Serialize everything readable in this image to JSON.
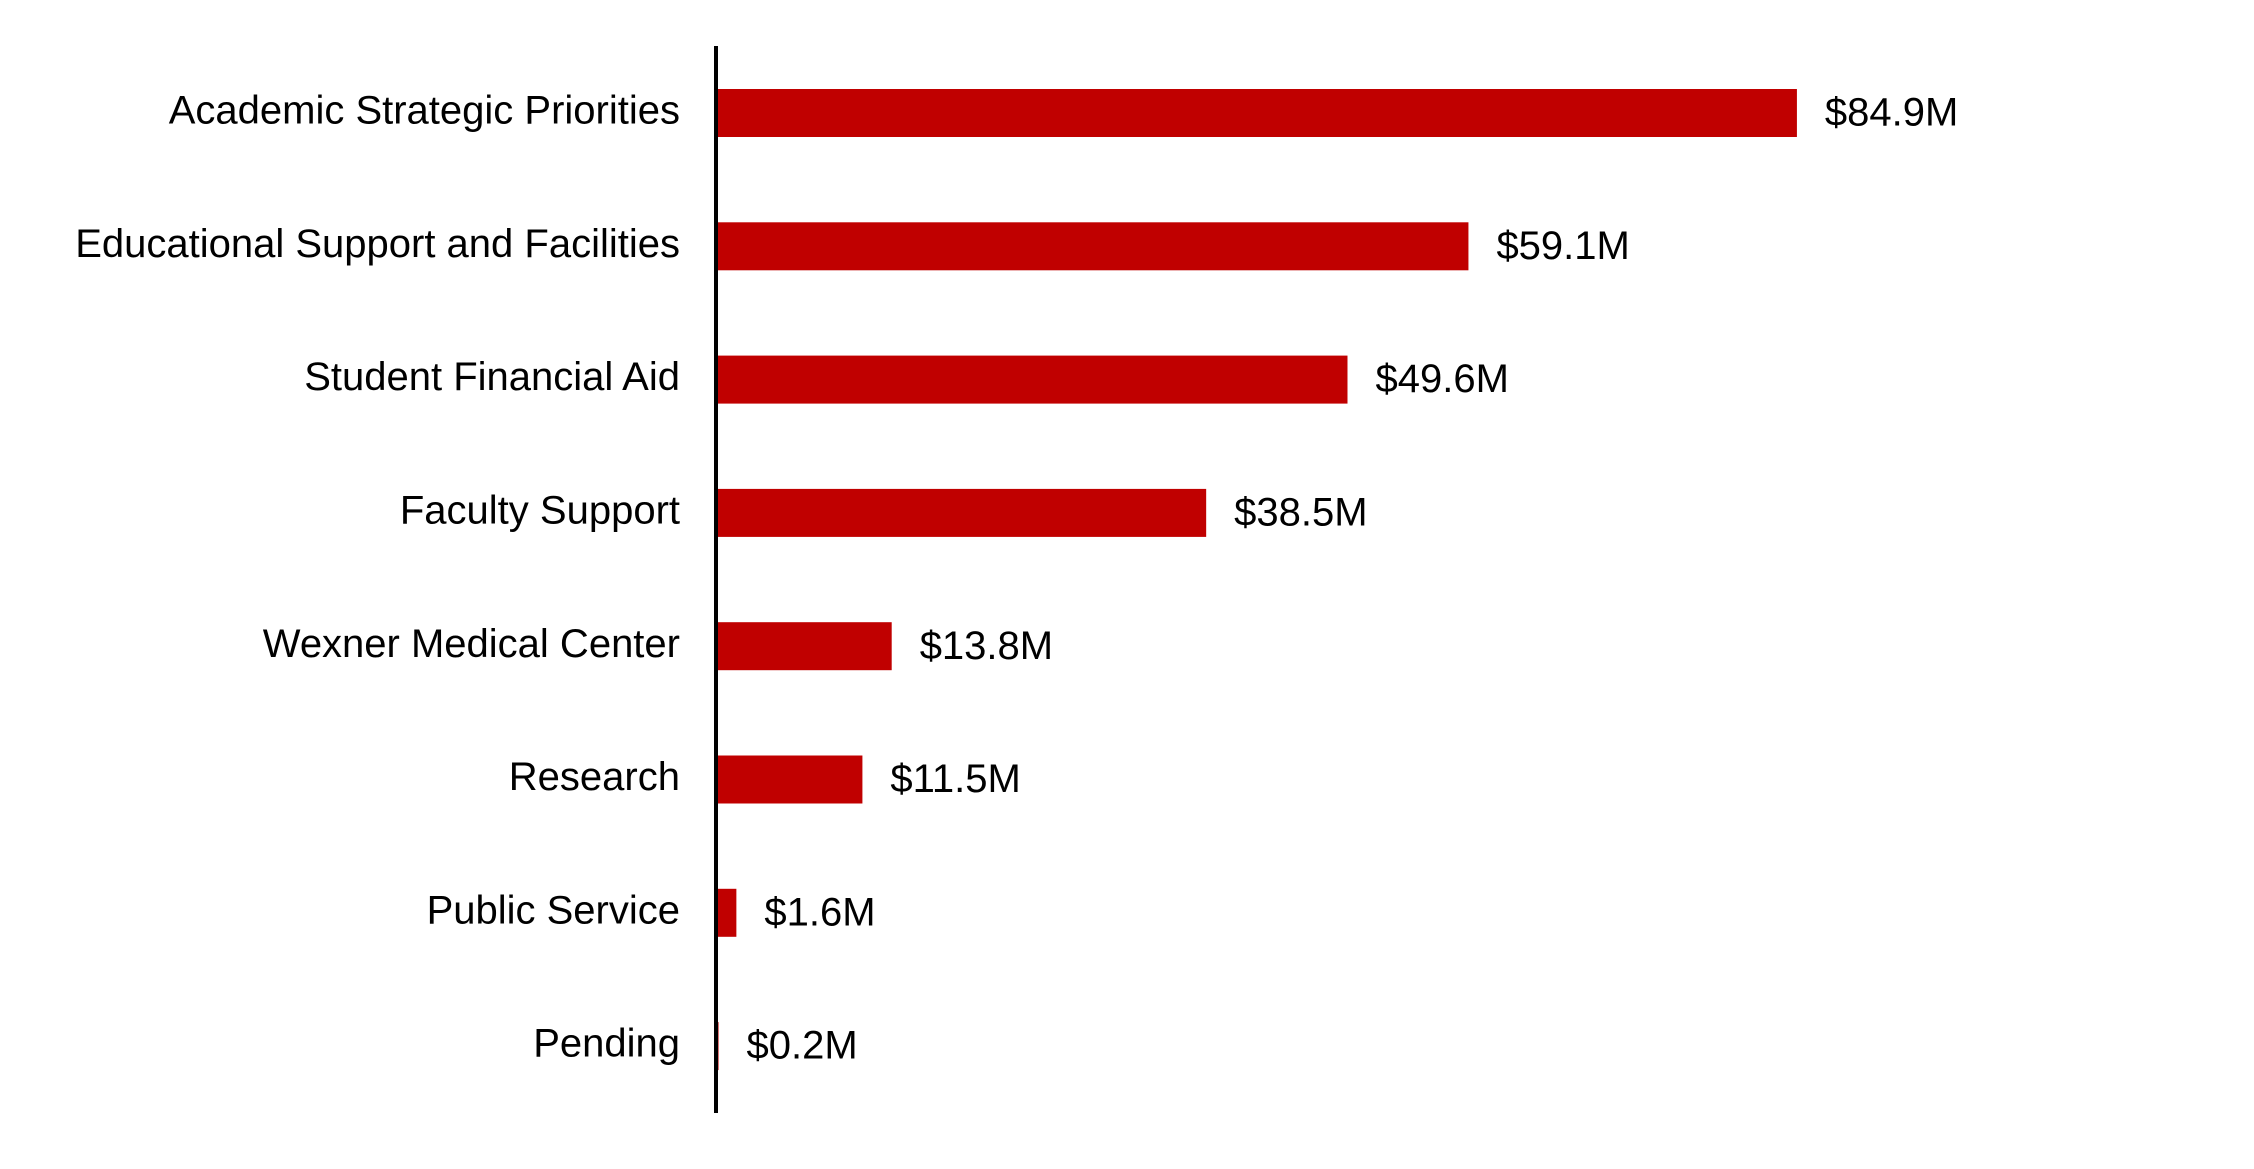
{
  "chart_data": {
    "type": "bar",
    "orientation": "horizontal",
    "categories": [
      "Academic Strategic Priorities",
      "Educational Support and Facilities",
      "Student Financial Aid",
      "Faculty Support",
      "Wexner Medical Center",
      "Research",
      "Public Service",
      "Pending"
    ],
    "values": [
      84.9,
      59.1,
      49.6,
      38.5,
      13.8,
      11.5,
      1.6,
      0.2
    ],
    "data_labels": [
      "$84.9M",
      "$59.1M",
      "$49.6M",
      "$38.5M",
      "$13.8M",
      "$11.5M",
      "$1.6M",
      "$0.2M"
    ],
    "title": "",
    "xlabel": "",
    "ylabel": "",
    "xlim": [
      0,
      123
    ],
    "grid": false,
    "legend": "none",
    "bar_color": "#c00000",
    "axis_color": "#000000"
  }
}
